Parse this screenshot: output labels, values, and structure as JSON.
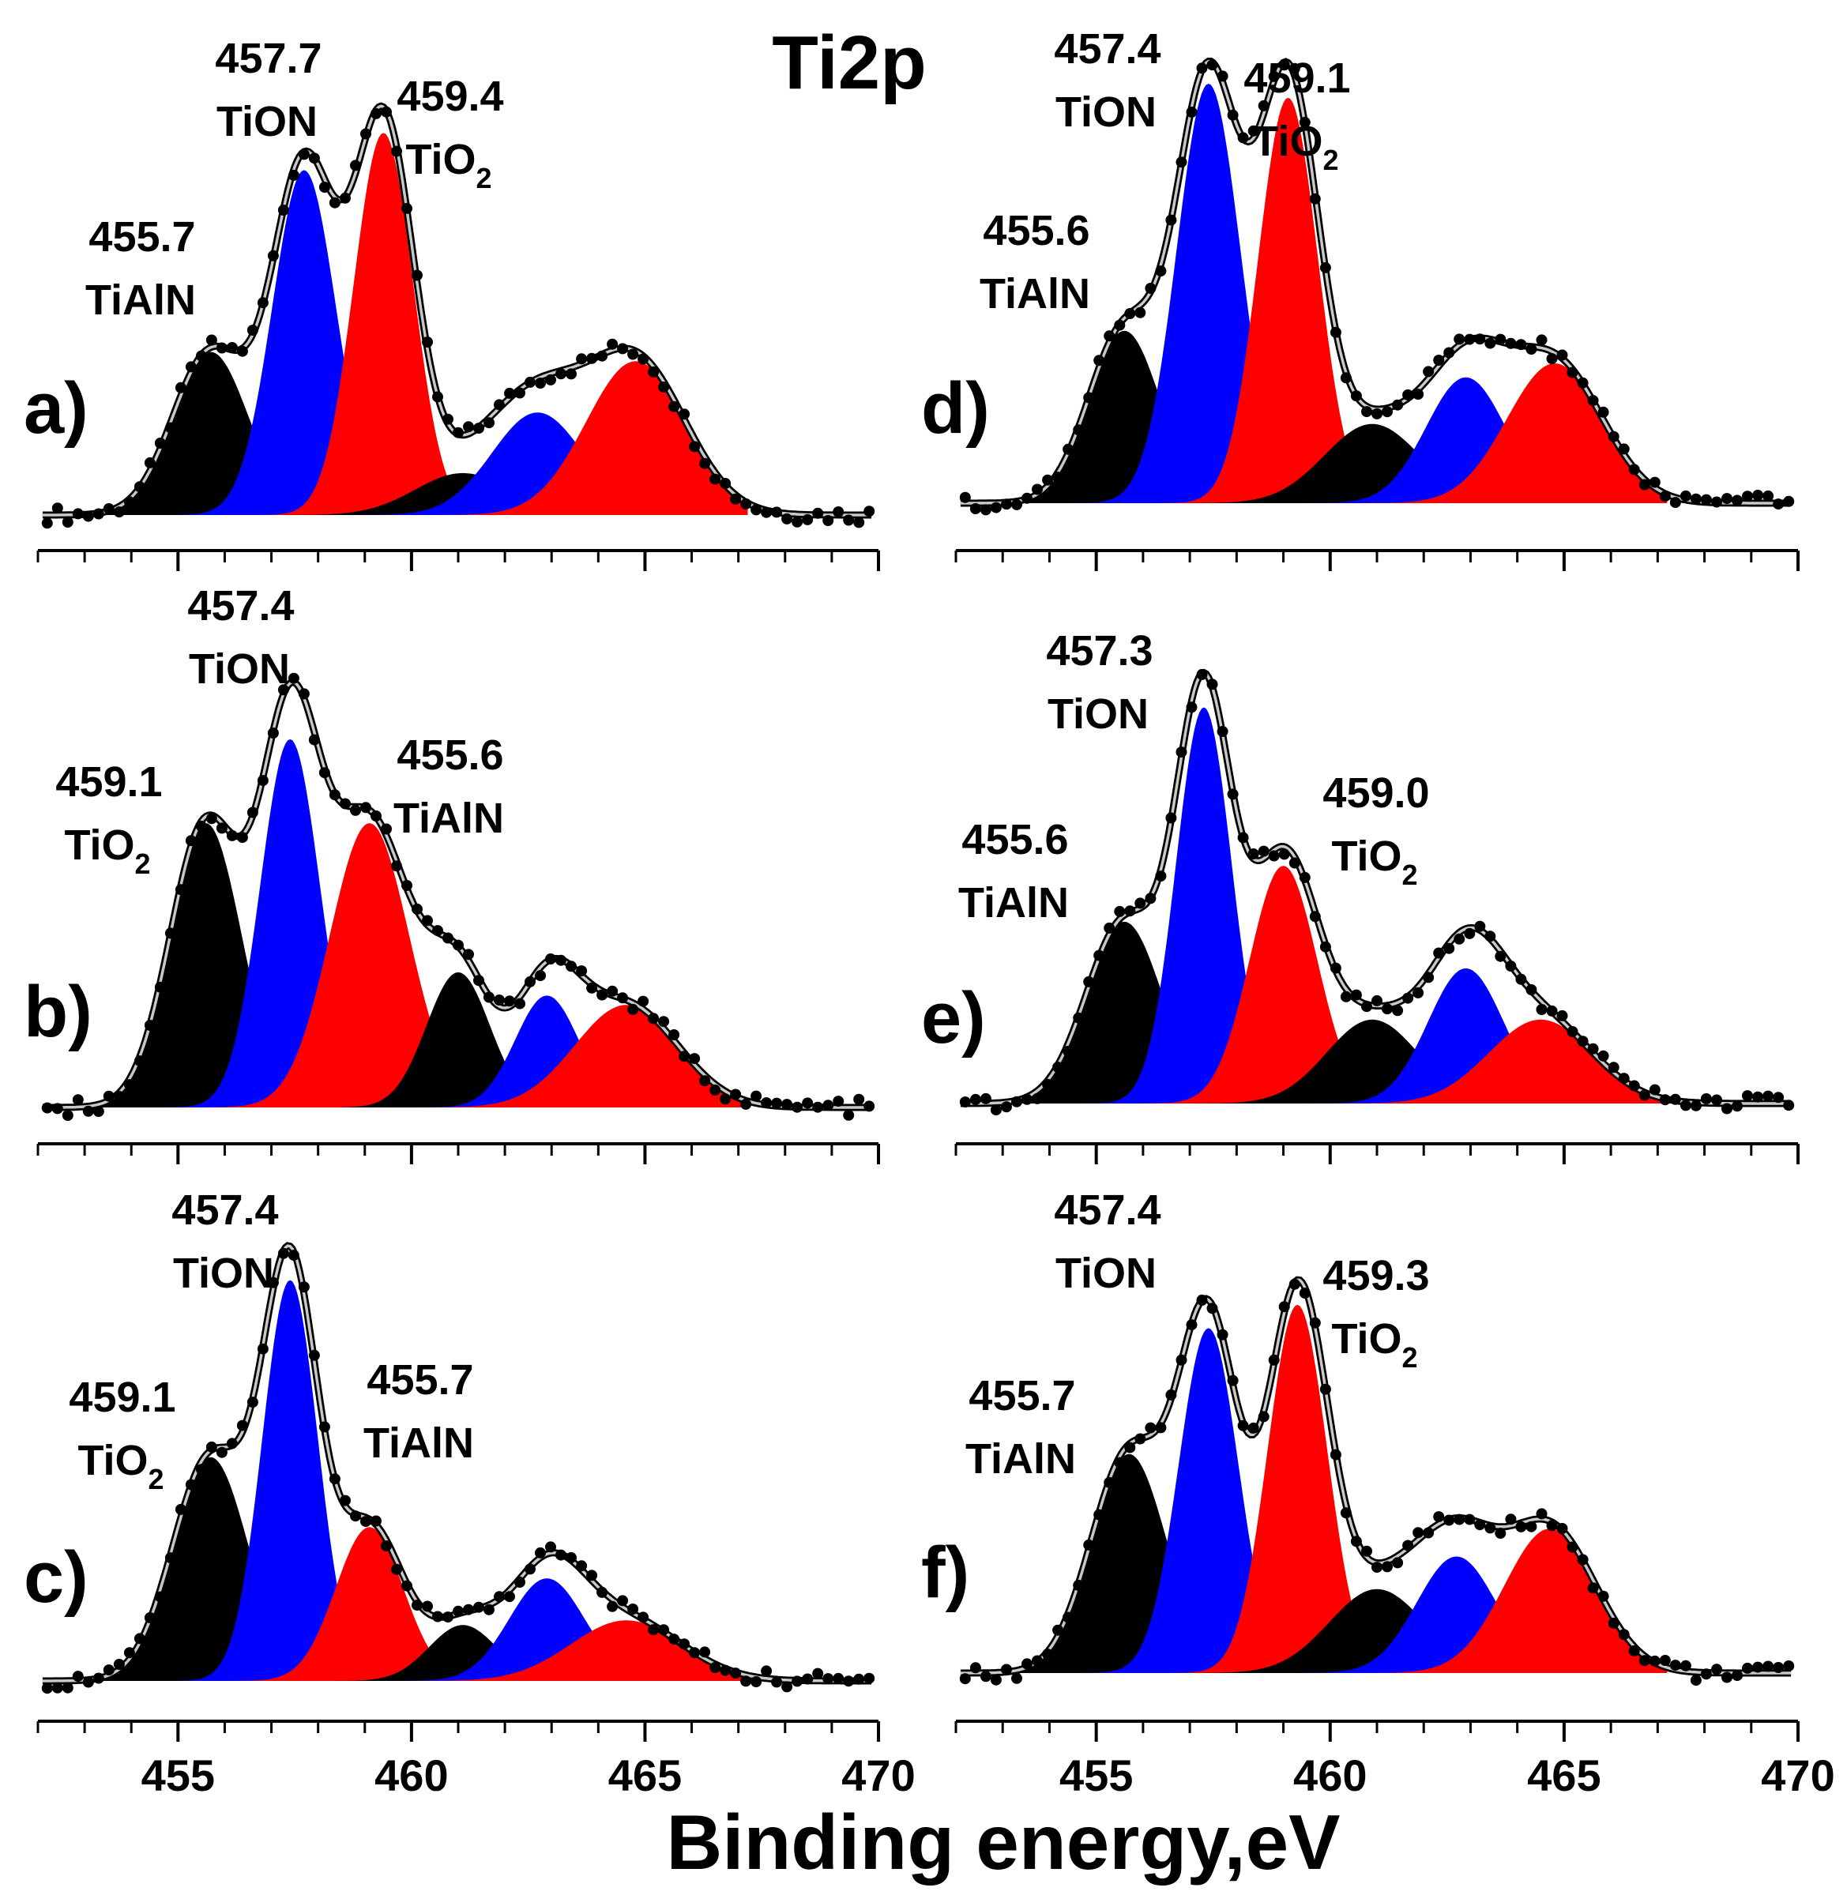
{
  "title": "Ti2p",
  "x_label": "Binding energy,eV",
  "colors": {
    "tialn": "#000000",
    "tion": "#0000ff",
    "tio2": "#ff0000",
    "envelope": "#c8c8c8",
    "points": "#000000",
    "axis": "#000000"
  },
  "chart_data": [
    {
      "type": "area",
      "panel_label": "a)",
      "xlim": [
        452,
        470
      ],
      "x_ticks": [
        455,
        460,
        465,
        470
      ],
      "tick_labels": [
        "455",
        "460",
        "465",
        "470"
      ],
      "peaks": [
        {
          "component": "TiAlN",
          "center": 455.7,
          "height": 0.35,
          "fwhm": 1.9,
          "color": "tialn"
        },
        {
          "component": "TiON",
          "center": 457.7,
          "height": 0.74,
          "fwhm": 1.6,
          "color": "tion"
        },
        {
          "component": "TiO2",
          "center": 459.4,
          "height": 0.82,
          "fwhm": 1.5,
          "color": "tio2"
        },
        {
          "component": "TiAlN",
          "center": 461.1,
          "height": 0.09,
          "fwhm": 2.4,
          "color": "tialn"
        },
        {
          "component": "TiON",
          "center": 462.7,
          "height": 0.22,
          "fwhm": 2.3,
          "color": "tion"
        },
        {
          "component": "TiO2",
          "center": 464.8,
          "height": 0.33,
          "fwhm": 2.5,
          "color": "tio2"
        }
      ],
      "annotations": [
        {
          "value": "457.7",
          "name": "TiON",
          "sub": ""
        },
        {
          "value": "459.4",
          "name": "TiO",
          "sub": "2"
        },
        {
          "value": "455.7",
          "name": "TiAlN",
          "sub": ""
        }
      ]
    },
    {
      "type": "area",
      "panel_label": "b)",
      "xlim": [
        452,
        470
      ],
      "x_ticks": [
        455,
        460,
        465,
        470
      ],
      "tick_labels": [
        "455",
        "460",
        "465",
        "470"
      ],
      "peaks": [
        {
          "component": "TiAlN",
          "center": 455.6,
          "height": 0.61,
          "fwhm": 1.8,
          "color": "tialn"
        },
        {
          "component": "TiON",
          "center": 457.4,
          "height": 0.79,
          "fwhm": 1.5,
          "color": "tion"
        },
        {
          "component": "TiO2",
          "center": 459.1,
          "height": 0.61,
          "fwhm": 2.0,
          "color": "tio2"
        },
        {
          "component": "TiAlN",
          "center": 461.0,
          "height": 0.29,
          "fwhm": 1.6,
          "color": "tialn"
        },
        {
          "component": "TiON",
          "center": 462.9,
          "height": 0.24,
          "fwhm": 1.6,
          "color": "tion"
        },
        {
          "component": "TiO2",
          "center": 464.6,
          "height": 0.22,
          "fwhm": 2.6,
          "color": "tio2"
        }
      ],
      "annotations": [
        {
          "value": "457.4",
          "name": "TiON",
          "sub": ""
        },
        {
          "value": "455.6",
          "name": "TiAlN",
          "sub": ""
        },
        {
          "value": "459.1",
          "name": "TiO",
          "sub": "2"
        }
      ]
    },
    {
      "type": "area",
      "panel_label": "c)",
      "xlim": [
        452,
        470
      ],
      "x_ticks": [
        455,
        460,
        465,
        470
      ],
      "tick_labels": [
        "455",
        "460",
        "465",
        "470"
      ],
      "peaks": [
        {
          "component": "TiAlN",
          "center": 455.7,
          "height": 0.48,
          "fwhm": 1.9,
          "color": "tialn"
        },
        {
          "component": "TiON",
          "center": 457.4,
          "height": 0.86,
          "fwhm": 1.4,
          "color": "tion"
        },
        {
          "component": "TiO2",
          "center": 459.1,
          "height": 0.33,
          "fwhm": 1.7,
          "color": "tio2"
        },
        {
          "component": "TiAlN",
          "center": 461.1,
          "height": 0.12,
          "fwhm": 1.7,
          "color": "tialn"
        },
        {
          "component": "TiON",
          "center": 462.9,
          "height": 0.22,
          "fwhm": 1.9,
          "color": "tion"
        },
        {
          "component": "TiO2",
          "center": 464.6,
          "height": 0.13,
          "fwhm": 2.8,
          "color": "tio2"
        }
      ],
      "annotations": [
        {
          "value": "457.4",
          "name": "TiON",
          "sub": ""
        },
        {
          "value": "455.7",
          "name": "TiAlN",
          "sub": ""
        },
        {
          "value": "459.1",
          "name": "TiO",
          "sub": "2"
        }
      ]
    },
    {
      "type": "area",
      "panel_label": "d)",
      "xlim": [
        452,
        470
      ],
      "x_ticks": [
        455,
        460,
        465,
        470
      ],
      "tick_labels": [
        "455",
        "460",
        "465",
        "470"
      ],
      "peaks": [
        {
          "component": "TiAlN",
          "center": 455.6,
          "height": 0.37,
          "fwhm": 1.8,
          "color": "tialn"
        },
        {
          "component": "TiON",
          "center": 457.4,
          "height": 0.9,
          "fwhm": 1.6,
          "color": "tion"
        },
        {
          "component": "TiO2",
          "center": 459.1,
          "height": 0.87,
          "fwhm": 1.5,
          "color": "tio2"
        },
        {
          "component": "TiAlN",
          "center": 460.9,
          "height": 0.17,
          "fwhm": 2.4,
          "color": "tialn"
        },
        {
          "component": "TiON",
          "center": 462.9,
          "height": 0.27,
          "fwhm": 2.0,
          "color": "tion"
        },
        {
          "component": "TiO2",
          "center": 464.8,
          "height": 0.3,
          "fwhm": 2.4,
          "color": "tio2"
        }
      ],
      "annotations": [
        {
          "value": "457.4",
          "name": "TiON",
          "sub": ""
        },
        {
          "value": "459.1",
          "name": "TiO",
          "sub": "2"
        },
        {
          "value": "455.6",
          "name": "TiAlN",
          "sub": ""
        }
      ]
    },
    {
      "type": "area",
      "panel_label": "e)",
      "xlim": [
        452,
        470
      ],
      "x_ticks": [
        455,
        460,
        465,
        470
      ],
      "tick_labels": [
        "455",
        "460",
        "465",
        "470"
      ],
      "peaks": [
        {
          "component": "TiAlN",
          "center": 455.6,
          "height": 0.39,
          "fwhm": 1.9,
          "color": "tialn"
        },
        {
          "component": "TiON",
          "center": 457.3,
          "height": 0.85,
          "fwhm": 1.4,
          "color": "tion"
        },
        {
          "component": "TiO2",
          "center": 459.0,
          "height": 0.51,
          "fwhm": 1.7,
          "color": "tio2"
        },
        {
          "component": "TiAlN",
          "center": 460.9,
          "height": 0.18,
          "fwhm": 2.3,
          "color": "tialn"
        },
        {
          "component": "TiON",
          "center": 462.9,
          "height": 0.29,
          "fwhm": 1.9,
          "color": "tion"
        },
        {
          "component": "TiO2",
          "center": 464.5,
          "height": 0.18,
          "fwhm": 2.6,
          "color": "tio2"
        }
      ],
      "annotations": [
        {
          "value": "457.3",
          "name": "TiON",
          "sub": ""
        },
        {
          "value": "459.0",
          "name": "TiO",
          "sub": "2"
        },
        {
          "value": "455.6",
          "name": "TiAlN",
          "sub": ""
        }
      ]
    },
    {
      "type": "area",
      "panel_label": "f)",
      "xlim": [
        452,
        470
      ],
      "x_ticks": [
        455,
        460,
        465,
        470
      ],
      "tick_labels": [
        "455",
        "460",
        "465",
        "470"
      ],
      "peaks": [
        {
          "component": "TiAlN",
          "center": 455.7,
          "height": 0.47,
          "fwhm": 1.9,
          "color": "tialn"
        },
        {
          "component": "TiON",
          "center": 457.4,
          "height": 0.74,
          "fwhm": 1.5,
          "color": "tion"
        },
        {
          "component": "TiO2",
          "center": 459.3,
          "height": 0.79,
          "fwhm": 1.5,
          "color": "tio2"
        },
        {
          "component": "TiAlN",
          "center": 461.0,
          "height": 0.18,
          "fwhm": 2.4,
          "color": "tialn"
        },
        {
          "component": "TiON",
          "center": 462.7,
          "height": 0.25,
          "fwhm": 2.0,
          "color": "tion"
        },
        {
          "component": "TiO2",
          "center": 464.7,
          "height": 0.31,
          "fwhm": 2.3,
          "color": "tio2"
        }
      ],
      "annotations": [
        {
          "value": "457.4",
          "name": "TiON",
          "sub": ""
        },
        {
          "value": "459.3",
          "name": "TiO",
          "sub": "2"
        },
        {
          "value": "455.7",
          "name": "TiAlN",
          "sub": ""
        }
      ]
    }
  ]
}
